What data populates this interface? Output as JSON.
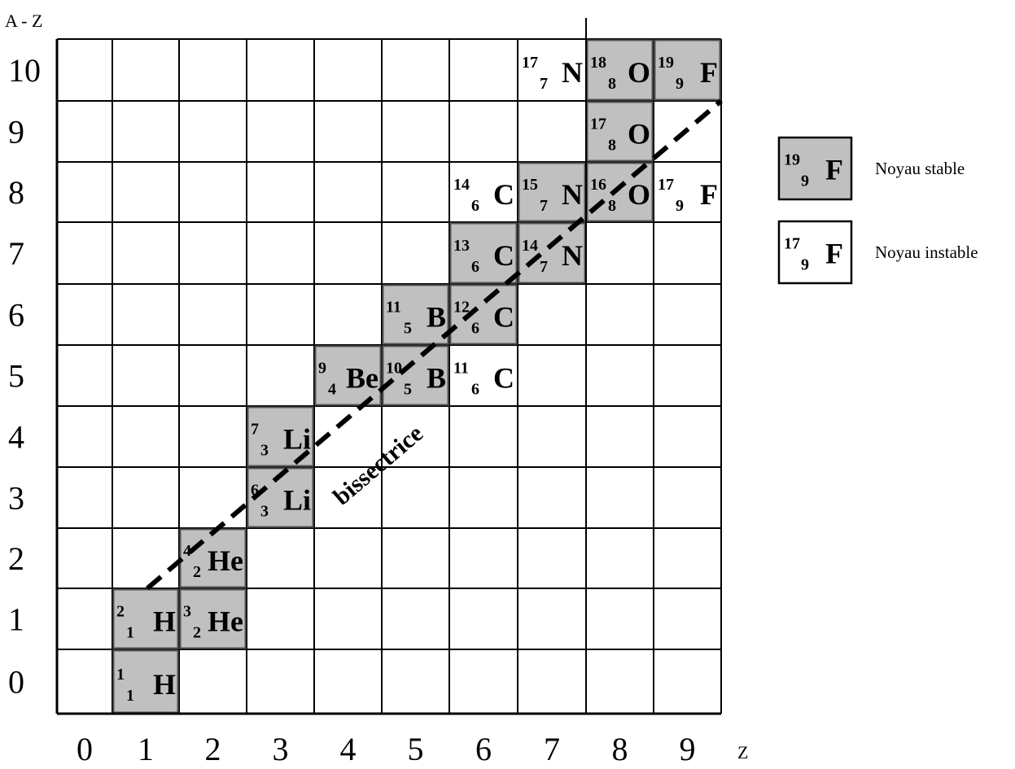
{
  "y_axis_title": "A - Z",
  "x_axis_title": "Z",
  "y_ticks": [
    "0",
    "1",
    "2",
    "3",
    "4",
    "5",
    "6",
    "7",
    "8",
    "9",
    "10"
  ],
  "x_ticks": [
    "0",
    "1",
    "2",
    "3",
    "4",
    "5",
    "6",
    "7",
    "8",
    "9"
  ],
  "bisector_label": "bissectrice",
  "colors": {
    "stable": "#c0c0c0",
    "unstable": "#ffffff",
    "line": "#000000"
  },
  "nuclei": [
    {
      "A": 1,
      "Z": 1,
      "N": 0,
      "symbol": "H",
      "stable": true
    },
    {
      "A": 2,
      "Z": 1,
      "N": 1,
      "symbol": "H",
      "stable": true
    },
    {
      "A": 3,
      "Z": 2,
      "N": 1,
      "symbol": "He",
      "stable": true
    },
    {
      "A": 4,
      "Z": 2,
      "N": 2,
      "symbol": "He",
      "stable": true
    },
    {
      "A": 6,
      "Z": 3,
      "N": 3,
      "symbol": "Li",
      "stable": true
    },
    {
      "A": 7,
      "Z": 3,
      "N": 4,
      "symbol": "Li",
      "stable": true
    },
    {
      "A": 9,
      "Z": 4,
      "N": 5,
      "symbol": "Be",
      "stable": true
    },
    {
      "A": 10,
      "Z": 5,
      "N": 5,
      "symbol": "B",
      "stable": true
    },
    {
      "A": 11,
      "Z": 5,
      "N": 6,
      "symbol": "B",
      "stable": true
    },
    {
      "A": 11,
      "Z": 6,
      "N": 5,
      "symbol": "C",
      "stable": false
    },
    {
      "A": 12,
      "Z": 6,
      "N": 6,
      "symbol": "C",
      "stable": true
    },
    {
      "A": 13,
      "Z": 6,
      "N": 7,
      "symbol": "C",
      "stable": true
    },
    {
      "A": 14,
      "Z": 6,
      "N": 8,
      "symbol": "C",
      "stable": false
    },
    {
      "A": 14,
      "Z": 7,
      "N": 7,
      "symbol": "N",
      "stable": true
    },
    {
      "A": 15,
      "Z": 7,
      "N": 8,
      "symbol": "N",
      "stable": true
    },
    {
      "A": 17,
      "Z": 7,
      "N": 10,
      "symbol": "N",
      "stable": false
    },
    {
      "A": 16,
      "Z": 8,
      "N": 8,
      "symbol": "O",
      "stable": true
    },
    {
      "A": 17,
      "Z": 8,
      "N": 9,
      "symbol": "O",
      "stable": true
    },
    {
      "A": 18,
      "Z": 8,
      "N": 10,
      "symbol": "O",
      "stable": true
    },
    {
      "A": 17,
      "Z": 9,
      "N": 8,
      "symbol": "F",
      "stable": false
    },
    {
      "A": 19,
      "Z": 9,
      "N": 10,
      "symbol": "F",
      "stable": true
    }
  ],
  "legend": [
    {
      "A": 19,
      "Z": 9,
      "symbol": "F",
      "stable": true,
      "label": "Noyau stable"
    },
    {
      "A": 17,
      "Z": 9,
      "symbol": "F",
      "stable": false,
      "label": "Noyau instable"
    }
  ]
}
